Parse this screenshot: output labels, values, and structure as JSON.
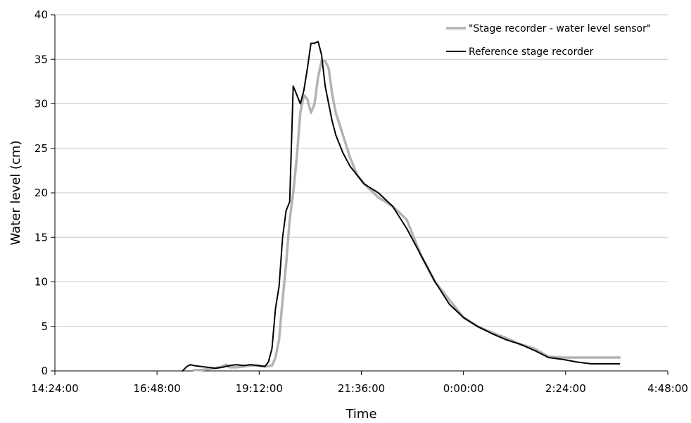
{
  "chart_data": {
    "type": "line",
    "title": "",
    "xlabel": "Time",
    "ylabel": "Water level (cm)",
    "xlim": [
      "14:24:00",
      "4:48:00"
    ],
    "ylim": [
      0,
      40
    ],
    "x_ticks": [
      "14:24:00",
      "16:48:00",
      "19:12:00",
      "21:36:00",
      "0:00:00",
      "2:24:00",
      "4:48:00"
    ],
    "y_ticks": [
      "0",
      "5",
      "10",
      "15",
      "20",
      "25",
      "30",
      "35",
      "40"
    ],
    "grid": "horizontal",
    "legend": "top-right",
    "series": [
      {
        "name": "\"Stage recorder - water level sensor\"",
        "color": "#b3b3b3",
        "x": [
          "17:40",
          "17:50",
          "18:00",
          "18:10",
          "18:20",
          "18:25",
          "18:30",
          "18:40",
          "18:50",
          "19:00",
          "19:10",
          "19:20",
          "19:30",
          "19:35",
          "19:40",
          "19:45",
          "19:50",
          "19:55",
          "20:00",
          "20:05",
          "20:10",
          "20:15",
          "20:20",
          "20:25",
          "20:30",
          "20:35",
          "20:40",
          "20:45",
          "20:50",
          "20:55",
          "21:00",
          "21:10",
          "21:20",
          "21:30",
          "21:40",
          "22:00",
          "22:20",
          "22:40",
          "23:00",
          "23:20",
          "23:40",
          "0:00",
          "0:20",
          "0:40",
          "1:00",
          "1:20",
          "1:40",
          "2:00",
          "2:20",
          "2:40",
          "3:00",
          "3:20",
          "3:40"
        ],
        "y": [
          0.1,
          0.1,
          0.2,
          0.3,
          0.5,
          0.7,
          0.4,
          0.4,
          0.5,
          0.6,
          0.6,
          0.5,
          0.6,
          1.5,
          3.5,
          8,
          12,
          17,
          20,
          24,
          29,
          31,
          30.5,
          29,
          30,
          33,
          34.8,
          34.8,
          34,
          31,
          29,
          26.5,
          24,
          22,
          21,
          19.5,
          18.5,
          17,
          13,
          10,
          8,
          6,
          5,
          4.3,
          3.7,
          3,
          2.5,
          1.6,
          1.5,
          1.5,
          1.5,
          1.5,
          1.5
        ]
      },
      {
        "name": "Reference stage recorder",
        "color": "#000000",
        "x": [
          "17:24",
          "17:30",
          "17:35",
          "17:40",
          "17:50",
          "18:00",
          "18:10",
          "18:20",
          "18:30",
          "18:40",
          "18:50",
          "19:00",
          "19:10",
          "19:20",
          "19:25",
          "19:30",
          "19:35",
          "19:40",
          "19:45",
          "19:50",
          "19:55",
          "20:00",
          "20:05",
          "20:10",
          "20:15",
          "20:20",
          "20:25",
          "20:30",
          "20:35",
          "20:40",
          "20:45",
          "20:50",
          "20:55",
          "21:00",
          "21:10",
          "21:20",
          "21:30",
          "21:40",
          "21:50",
          "22:00",
          "22:20",
          "22:40",
          "23:00",
          "23:20",
          "23:40",
          "0:00",
          "0:20",
          "0:40",
          "1:00",
          "1:20",
          "1:40",
          "2:00",
          "2:20",
          "2:40",
          "3:00",
          "3:20",
          "3:40"
        ],
        "y": [
          0,
          0.5,
          0.7,
          0.6,
          0.5,
          0.4,
          0.3,
          0.4,
          0.6,
          0.7,
          0.6,
          0.7,
          0.6,
          0.5,
          1,
          2.5,
          7,
          9.5,
          15,
          18,
          19,
          32,
          31,
          30,
          31.5,
          34,
          36.8,
          36.8,
          37,
          35.5,
          32,
          30,
          28,
          26.5,
          24.5,
          23,
          22,
          21,
          20.5,
          20,
          18.5,
          16,
          13,
          10,
          7.5,
          6,
          5,
          4.2,
          3.5,
          3,
          2.3,
          1.5,
          1.3,
          1,
          0.8,
          0.8,
          0.8
        ]
      }
    ]
  }
}
